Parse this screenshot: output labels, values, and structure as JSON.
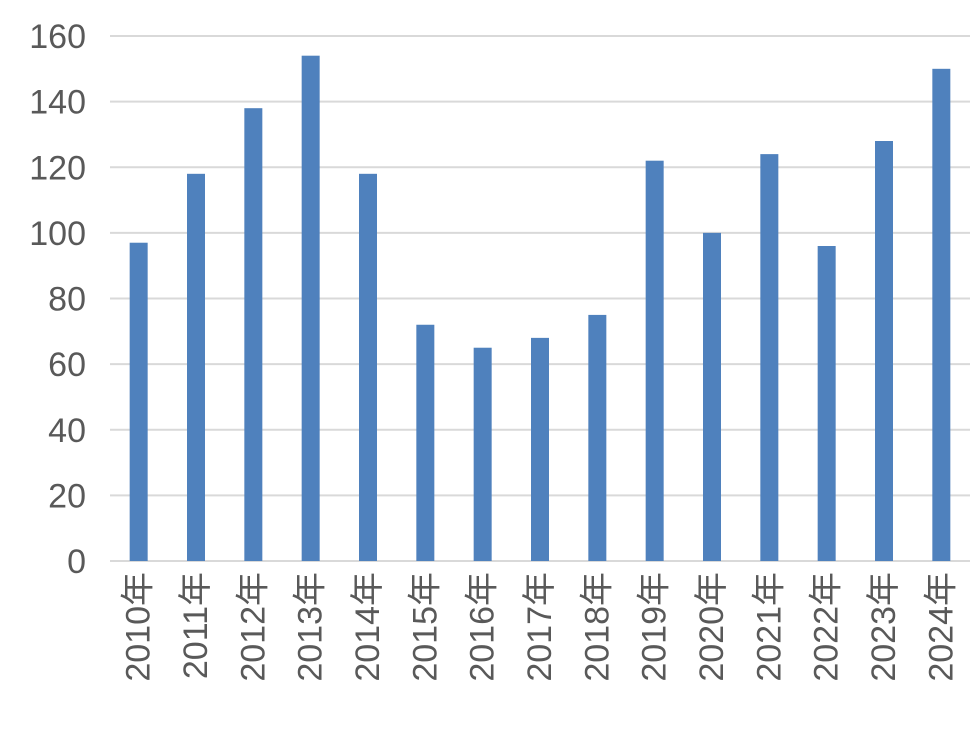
{
  "chart_data": {
    "type": "bar",
    "title": "",
    "xlabel": "",
    "ylabel": "",
    "categories": [
      "2010年",
      "2011年",
      "2012年",
      "2013年",
      "2014年",
      "2015年",
      "2016年",
      "2017年",
      "2018年",
      "2019年",
      "2020年",
      "2021年",
      "2022年",
      "2023年",
      "2024年"
    ],
    "values": [
      97,
      118,
      138,
      154,
      118,
      72,
      65,
      68,
      75,
      122,
      100,
      124,
      96,
      128,
      150
    ],
    "ylim": [
      0,
      160
    ],
    "yticks": [
      0,
      20,
      40,
      60,
      80,
      100,
      120,
      140,
      160
    ],
    "grid": true,
    "legend": "none",
    "bar_color": "#4f81bd"
  }
}
